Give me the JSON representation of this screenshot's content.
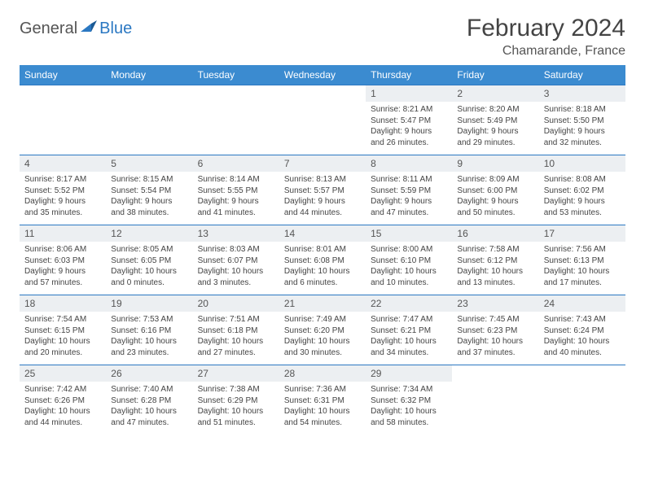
{
  "logo": {
    "part1": "General",
    "part2": "Blue"
  },
  "title": "February 2024",
  "location": "Chamarande, France",
  "colors": {
    "header_bg": "#3b8bd0",
    "header_fg": "#ffffff",
    "row_border": "#2b78c2",
    "daynum_bg": "#eceff2",
    "text": "#444444",
    "logo_gray": "#555555",
    "logo_blue": "#2b78c2"
  },
  "day_labels": [
    "Sunday",
    "Monday",
    "Tuesday",
    "Wednesday",
    "Thursday",
    "Friday",
    "Saturday"
  ],
  "weeks": [
    [
      null,
      null,
      null,
      null,
      {
        "n": "1",
        "sr": "Sunrise: 8:21 AM",
        "ss": "Sunset: 5:47 PM",
        "d1": "Daylight: 9 hours",
        "d2": "and 26 minutes."
      },
      {
        "n": "2",
        "sr": "Sunrise: 8:20 AM",
        "ss": "Sunset: 5:49 PM",
        "d1": "Daylight: 9 hours",
        "d2": "and 29 minutes."
      },
      {
        "n": "3",
        "sr": "Sunrise: 8:18 AM",
        "ss": "Sunset: 5:50 PM",
        "d1": "Daylight: 9 hours",
        "d2": "and 32 minutes."
      }
    ],
    [
      {
        "n": "4",
        "sr": "Sunrise: 8:17 AM",
        "ss": "Sunset: 5:52 PM",
        "d1": "Daylight: 9 hours",
        "d2": "and 35 minutes."
      },
      {
        "n": "5",
        "sr": "Sunrise: 8:15 AM",
        "ss": "Sunset: 5:54 PM",
        "d1": "Daylight: 9 hours",
        "d2": "and 38 minutes."
      },
      {
        "n": "6",
        "sr": "Sunrise: 8:14 AM",
        "ss": "Sunset: 5:55 PM",
        "d1": "Daylight: 9 hours",
        "d2": "and 41 minutes."
      },
      {
        "n": "7",
        "sr": "Sunrise: 8:13 AM",
        "ss": "Sunset: 5:57 PM",
        "d1": "Daylight: 9 hours",
        "d2": "and 44 minutes."
      },
      {
        "n": "8",
        "sr": "Sunrise: 8:11 AM",
        "ss": "Sunset: 5:59 PM",
        "d1": "Daylight: 9 hours",
        "d2": "and 47 minutes."
      },
      {
        "n": "9",
        "sr": "Sunrise: 8:09 AM",
        "ss": "Sunset: 6:00 PM",
        "d1": "Daylight: 9 hours",
        "d2": "and 50 minutes."
      },
      {
        "n": "10",
        "sr": "Sunrise: 8:08 AM",
        "ss": "Sunset: 6:02 PM",
        "d1": "Daylight: 9 hours",
        "d2": "and 53 minutes."
      }
    ],
    [
      {
        "n": "11",
        "sr": "Sunrise: 8:06 AM",
        "ss": "Sunset: 6:03 PM",
        "d1": "Daylight: 9 hours",
        "d2": "and 57 minutes."
      },
      {
        "n": "12",
        "sr": "Sunrise: 8:05 AM",
        "ss": "Sunset: 6:05 PM",
        "d1": "Daylight: 10 hours",
        "d2": "and 0 minutes."
      },
      {
        "n": "13",
        "sr": "Sunrise: 8:03 AM",
        "ss": "Sunset: 6:07 PM",
        "d1": "Daylight: 10 hours",
        "d2": "and 3 minutes."
      },
      {
        "n": "14",
        "sr": "Sunrise: 8:01 AM",
        "ss": "Sunset: 6:08 PM",
        "d1": "Daylight: 10 hours",
        "d2": "and 6 minutes."
      },
      {
        "n": "15",
        "sr": "Sunrise: 8:00 AM",
        "ss": "Sunset: 6:10 PM",
        "d1": "Daylight: 10 hours",
        "d2": "and 10 minutes."
      },
      {
        "n": "16",
        "sr": "Sunrise: 7:58 AM",
        "ss": "Sunset: 6:12 PM",
        "d1": "Daylight: 10 hours",
        "d2": "and 13 minutes."
      },
      {
        "n": "17",
        "sr": "Sunrise: 7:56 AM",
        "ss": "Sunset: 6:13 PM",
        "d1": "Daylight: 10 hours",
        "d2": "and 17 minutes."
      }
    ],
    [
      {
        "n": "18",
        "sr": "Sunrise: 7:54 AM",
        "ss": "Sunset: 6:15 PM",
        "d1": "Daylight: 10 hours",
        "d2": "and 20 minutes."
      },
      {
        "n": "19",
        "sr": "Sunrise: 7:53 AM",
        "ss": "Sunset: 6:16 PM",
        "d1": "Daylight: 10 hours",
        "d2": "and 23 minutes."
      },
      {
        "n": "20",
        "sr": "Sunrise: 7:51 AM",
        "ss": "Sunset: 6:18 PM",
        "d1": "Daylight: 10 hours",
        "d2": "and 27 minutes."
      },
      {
        "n": "21",
        "sr": "Sunrise: 7:49 AM",
        "ss": "Sunset: 6:20 PM",
        "d1": "Daylight: 10 hours",
        "d2": "and 30 minutes."
      },
      {
        "n": "22",
        "sr": "Sunrise: 7:47 AM",
        "ss": "Sunset: 6:21 PM",
        "d1": "Daylight: 10 hours",
        "d2": "and 34 minutes."
      },
      {
        "n": "23",
        "sr": "Sunrise: 7:45 AM",
        "ss": "Sunset: 6:23 PM",
        "d1": "Daylight: 10 hours",
        "d2": "and 37 minutes."
      },
      {
        "n": "24",
        "sr": "Sunrise: 7:43 AM",
        "ss": "Sunset: 6:24 PM",
        "d1": "Daylight: 10 hours",
        "d2": "and 40 minutes."
      }
    ],
    [
      {
        "n": "25",
        "sr": "Sunrise: 7:42 AM",
        "ss": "Sunset: 6:26 PM",
        "d1": "Daylight: 10 hours",
        "d2": "and 44 minutes."
      },
      {
        "n": "26",
        "sr": "Sunrise: 7:40 AM",
        "ss": "Sunset: 6:28 PM",
        "d1": "Daylight: 10 hours",
        "d2": "and 47 minutes."
      },
      {
        "n": "27",
        "sr": "Sunrise: 7:38 AM",
        "ss": "Sunset: 6:29 PM",
        "d1": "Daylight: 10 hours",
        "d2": "and 51 minutes."
      },
      {
        "n": "28",
        "sr": "Sunrise: 7:36 AM",
        "ss": "Sunset: 6:31 PM",
        "d1": "Daylight: 10 hours",
        "d2": "and 54 minutes."
      },
      {
        "n": "29",
        "sr": "Sunrise: 7:34 AM",
        "ss": "Sunset: 6:32 PM",
        "d1": "Daylight: 10 hours",
        "d2": "and 58 minutes."
      },
      null,
      null
    ]
  ]
}
